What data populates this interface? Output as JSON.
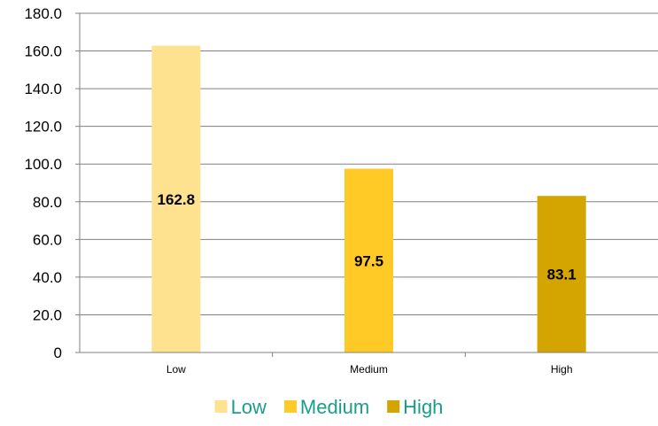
{
  "chart_data": {
    "type": "bar",
    "categories": [
      "Low",
      "Medium",
      "High"
    ],
    "values": [
      162.8,
      97.5,
      83.1
    ],
    "data_labels": [
      "162.8",
      "97.5",
      "83.1"
    ],
    "colors": [
      "#FFE28F",
      "#FFC926",
      "#D4A500"
    ],
    "ylim": [
      0,
      180
    ],
    "yticks": [
      0,
      20,
      40,
      60,
      80,
      100,
      120,
      140,
      160,
      180
    ],
    "ytick_labels": [
      "0",
      "20.0",
      "40.0",
      "60.0",
      "80.0",
      "100.0",
      "120.0",
      "140.0",
      "160.0",
      "180.0"
    ],
    "grid": true,
    "legend_position": "bottom",
    "legend": [
      "Low",
      "Medium",
      "High"
    ],
    "legend_text_color": "#1A9E8A",
    "grid_color": "#808080"
  }
}
